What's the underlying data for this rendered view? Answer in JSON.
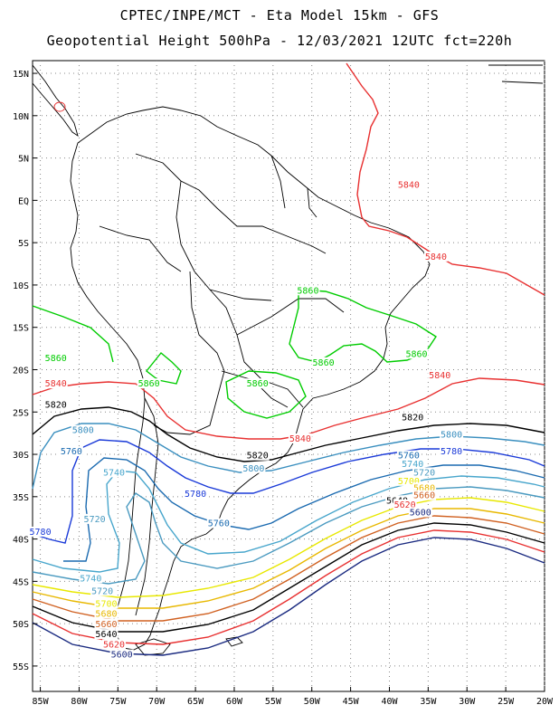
{
  "header": {
    "line1": "CPTEC/INPE/MCT -  Eta Model 15km - GFS",
    "line2": "Geopotential Height 500hPa - 12/03/2021 12UTC fct=220h"
  },
  "axes": {
    "lat_labels": [
      "15N",
      "10N",
      "5N",
      "EQ",
      "5S",
      "10S",
      "15S",
      "20S",
      "25S",
      "30S",
      "35S",
      "40S",
      "45S",
      "50S",
      "55S"
    ],
    "lon_labels": [
      "85W",
      "80W",
      "75W",
      "70W",
      "65W",
      "60W",
      "55W",
      "50W",
      "45W",
      "40W",
      "35W",
      "30W",
      "25W",
      "20W"
    ],
    "lat_values": [
      15,
      10,
      5,
      0,
      -5,
      -10,
      -15,
      -20,
      -25,
      -30,
      -35,
      -40,
      -45,
      -50,
      -55
    ],
    "lon_values": [
      -85,
      -80,
      -75,
      -70,
      -65,
      -60,
      -55,
      -50,
      -45,
      -40,
      -35,
      -30,
      -25,
      -20
    ],
    "lat_range": [
      -58,
      16.5
    ],
    "lon_range": [
      -86,
      -20
    ],
    "grid": "dotted"
  },
  "contour_colors": {
    "5840": "#e83030",
    "5860": "#00cc00",
    "5820": "#000000",
    "5800": "#3a8fbf",
    "5780": "#1a3ad8",
    "5760": "#1a6ab0",
    "5740": "#48a6cc",
    "5720": "#4a9ac0",
    "5700": "#e8e800",
    "5680": "#e8b800",
    "5660": "#d06020",
    "5640": "#000000",
    "5620": "#e83030",
    "5600": "#1a2a80",
    "land": "#000000"
  },
  "contour_labels": [
    {
      "text": "5840",
      "lon": -37.5,
      "lat": 1.5,
      "level": "5840"
    },
    {
      "text": "5840",
      "lon": -34,
      "lat": -7,
      "level": "5840"
    },
    {
      "text": "5840",
      "lon": -83,
      "lat": -22,
      "level": "5840"
    },
    {
      "text": "5840",
      "lon": -33.5,
      "lat": -21,
      "level": "5840"
    },
    {
      "text": "5840",
      "lon": -51.5,
      "lat": -28.5,
      "level": "5840"
    },
    {
      "text": "5860",
      "lon": -50.5,
      "lat": -11,
      "level": "5860"
    },
    {
      "text": "5860",
      "lon": -83,
      "lat": -19,
      "level": "5860"
    },
    {
      "text": "5860",
      "lon": -71,
      "lat": -22,
      "level": "5860"
    },
    {
      "text": "5860",
      "lon": -57,
      "lat": -22,
      "level": "5860"
    },
    {
      "text": "5860",
      "lon": -48.5,
      "lat": -19.5,
      "level": "5860"
    },
    {
      "text": "5860",
      "lon": -36.5,
      "lat": -18.5,
      "level": "5860"
    },
    {
      "text": "5820",
      "lon": -83,
      "lat": -24.5,
      "level": "5820"
    },
    {
      "text": "5820",
      "lon": -37,
      "lat": -26,
      "level": "5820"
    },
    {
      "text": "5820",
      "lon": -57,
      "lat": -30.5,
      "level": "5820"
    },
    {
      "text": "5800",
      "lon": -79.5,
      "lat": -27.5,
      "level": "5800"
    },
    {
      "text": "5800",
      "lon": -32,
      "lat": -28,
      "level": "5800"
    },
    {
      "text": "5800",
      "lon": -57.5,
      "lat": -32,
      "level": "5800"
    },
    {
      "text": "5780",
      "lon": -32,
      "lat": -30,
      "level": "5780"
    },
    {
      "text": "5780",
      "lon": -85,
      "lat": -39.5,
      "level": "5780"
    },
    {
      "text": "5780",
      "lon": -65,
      "lat": -35,
      "level": "5780"
    },
    {
      "text": "5760",
      "lon": -81,
      "lat": -30,
      "level": "5760"
    },
    {
      "text": "5760",
      "lon": -37.5,
      "lat": -30.5,
      "level": "5760"
    },
    {
      "text": "5760",
      "lon": -62,
      "lat": -38.5,
      "level": "5760"
    },
    {
      "text": "5740",
      "lon": -75.5,
      "lat": -32.5,
      "level": "5740"
    },
    {
      "text": "5740",
      "lon": -37,
      "lat": -31.5,
      "level": "5740"
    },
    {
      "text": "5740",
      "lon": -78.5,
      "lat": -45,
      "level": "5740"
    },
    {
      "text": "5720",
      "lon": -78,
      "lat": -38,
      "level": "5720"
    },
    {
      "text": "5720",
      "lon": -35.5,
      "lat": -32.5,
      "level": "5720"
    },
    {
      "text": "5720",
      "lon": -77,
      "lat": -46.5,
      "level": "5720"
    },
    {
      "text": "5700",
      "lon": -76.5,
      "lat": -48,
      "level": "5700"
    },
    {
      "text": "5700",
      "lon": -37.5,
      "lat": -33.5,
      "level": "5700"
    },
    {
      "text": "5680",
      "lon": -76.5,
      "lat": -49.2,
      "level": "5680"
    },
    {
      "text": "5680",
      "lon": -35.5,
      "lat": -34.3,
      "level": "5680"
    },
    {
      "text": "5660",
      "lon": -76.5,
      "lat": -50.4,
      "level": "5660"
    },
    {
      "text": "5660",
      "lon": -35.5,
      "lat": -35.2,
      "level": "5660"
    },
    {
      "text": "5640",
      "lon": -76.5,
      "lat": -51.6,
      "level": "5640"
    },
    {
      "text": "5640",
      "lon": -39,
      "lat": -35.8,
      "level": "5640"
    },
    {
      "text": "5620",
      "lon": -75.5,
      "lat": -52.8,
      "level": "5620"
    },
    {
      "text": "5620",
      "lon": -38,
      "lat": -36.3,
      "level": "5620"
    },
    {
      "text": "5600",
      "lon": -74.5,
      "lat": -54,
      "level": "5600"
    },
    {
      "text": "5600",
      "lon": -36,
      "lat": -37.2,
      "level": "5600"
    }
  ]
}
